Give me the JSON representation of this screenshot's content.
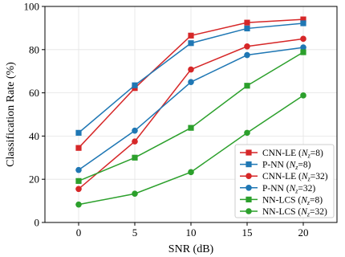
{
  "chart_data": {
    "type": "line",
    "xlabel": "SNR (dB)",
    "ylabel": "Classification Rate (%)",
    "x": [
      0,
      5,
      10,
      15,
      20
    ],
    "xlim": [
      -3,
      23
    ],
    "ylim": [
      0,
      100
    ],
    "xticks": [
      0,
      5,
      10,
      15,
      20
    ],
    "yticks": [
      0,
      20,
      40,
      60,
      80,
      100
    ],
    "grid": true,
    "legend_position": "bottom-right",
    "series": [
      {
        "name": "CNN-LE",
        "sub_param": "8",
        "color": "#d62728",
        "marker": "square",
        "values": [
          34.5,
          62.2,
          86.5,
          92.5,
          94.0
        ]
      },
      {
        "name": "P-NN",
        "sub_param": "8",
        "color": "#1f77b4",
        "marker": "square",
        "values": [
          41.5,
          63.5,
          83.0,
          89.8,
          92.2
        ]
      },
      {
        "name": "CNN-LE",
        "sub_param": "32",
        "color": "#d62728",
        "marker": "circle",
        "values": [
          15.5,
          37.5,
          70.8,
          81.5,
          85.0
        ]
      },
      {
        "name": "P-NN",
        "sub_param": "32",
        "color": "#1f77b4",
        "marker": "circle",
        "values": [
          24.3,
          42.5,
          65.0,
          77.5,
          81.0
        ]
      },
      {
        "name": "NN-LCS",
        "sub_param": "8",
        "color": "#2ca02c",
        "marker": "square",
        "values": [
          19.2,
          30.0,
          43.8,
          63.3,
          78.8
        ]
      },
      {
        "name": "NN-LCS",
        "sub_param": "32",
        "color": "#2ca02c",
        "marker": "circle",
        "values": [
          8.3,
          13.3,
          23.3,
          41.5,
          58.8
        ]
      }
    ]
  }
}
